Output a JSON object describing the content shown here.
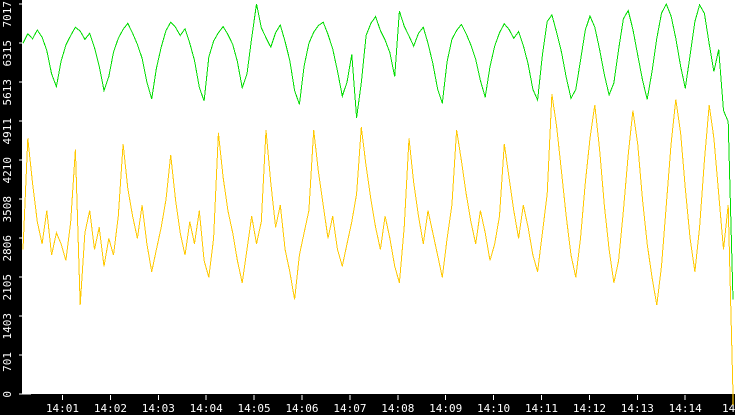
{
  "colors": {
    "plot_background": "#ffffff",
    "axis_background": "#000000",
    "axis_text": "#ffffff",
    "tick": "#ffffff",
    "series_green": "#00DC00",
    "series_yellow": "#FFC800"
  },
  "chart_data": {
    "type": "line",
    "title": "",
    "legend": null,
    "grid": false,
    "x_axis": {
      "tick_labels": [
        "14:01",
        "14:02",
        "14:03",
        "14:04",
        "14:05",
        "14:06",
        "14:07",
        "14:08",
        "14:09",
        "14:10",
        "14:11",
        "14:12",
        "14:13",
        "14:14"
      ],
      "partial_last_label": "14"
    },
    "y_axis": {
      "tick_labels": [
        "0",
        "701",
        "1403",
        "2105",
        "2806",
        "3508",
        "4210",
        "4911",
        "5613",
        "6315",
        "7017"
      ],
      "min": 0,
      "max": 7017
    },
    "series": [
      {
        "name": "green-series",
        "color": "#00DC00",
        "values": [
          6310,
          6480,
          6390,
          6550,
          6420,
          6180,
          5760,
          5530,
          5990,
          6280,
          6450,
          6600,
          6530,
          6380,
          6490,
          6230,
          5900,
          5460,
          5710,
          6150,
          6400,
          6560,
          6670,
          6490,
          6290,
          6040,
          5610,
          5310,
          5860,
          6240,
          6540,
          6690,
          6600,
          6450,
          6570,
          6310,
          6000,
          5520,
          5270,
          6060,
          6350,
          6500,
          6610,
          6470,
          6290,
          5980,
          5510,
          5760,
          6410,
          7017,
          6590,
          6410,
          6240,
          6500,
          6640,
          6340,
          6000,
          5460,
          5210,
          5900,
          6310,
          6510,
          6630,
          6690,
          6470,
          6210,
          5810,
          5360,
          5610,
          6110,
          4970,
          5600,
          6450,
          6670,
          6790,
          6540,
          6370,
          6140,
          5710,
          6890,
          6620,
          6440,
          6260,
          6490,
          6600,
          6310,
          5950,
          5490,
          5230,
          5980,
          6380,
          6540,
          6650,
          6480,
          6280,
          6020,
          5640,
          5340,
          5890,
          6260,
          6500,
          6660,
          6560,
          6400,
          6520,
          6270,
          5940,
          5480,
          5290,
          6100,
          6700,
          6820,
          6500,
          6150,
          5700,
          5320,
          5480,
          6000,
          6550,
          6800,
          6600,
          6200,
          5750,
          5380,
          5600,
          6200,
          6750,
          6900,
          6560,
          6100,
          5650,
          5300,
          5800,
          6400,
          6850,
          7017,
          6800,
          6400,
          5900,
          5500,
          6100,
          6700,
          7000,
          6850,
          6300,
          5800,
          6200,
          5100,
          4900,
          1700
        ]
      },
      {
        "name": "yellow-series",
        "color": "#FFC800",
        "values": [
          2600,
          4600,
          3800,
          3100,
          2700,
          3300,
          2500,
          2900,
          2700,
          2400,
          3100,
          4400,
          1600,
          2900,
          3300,
          2600,
          3000,
          2300,
          2800,
          2500,
          3200,
          4500,
          3700,
          3200,
          2800,
          3400,
          2700,
          2200,
          2600,
          3000,
          3500,
          4300,
          3500,
          2900,
          2500,
          3100,
          2700,
          3300,
          2400,
          2100,
          2800,
          4700,
          3900,
          3300,
          2900,
          2400,
          2000,
          2600,
          3200,
          2700,
          3100,
          4750,
          3800,
          3000,
          3400,
          2600,
          2200,
          1700,
          2500,
          2900,
          3300,
          4750,
          4000,
          3400,
          2800,
          3200,
          2600,
          2300,
          2700,
          3100,
          3600,
          4800,
          4100,
          3500,
          3000,
          2600,
          3200,
          2800,
          2300,
          2000,
          3000,
          4600,
          3800,
          3200,
          2700,
          3300,
          2900,
          2500,
          2100,
          2800,
          3400,
          4750,
          4200,
          3600,
          3100,
          2700,
          3300,
          2900,
          2400,
          2700,
          3200,
          4500,
          3900,
          3300,
          2800,
          3400,
          3000,
          2500,
          2200,
          2900,
          3600,
          5400,
          4800,
          4000,
          3200,
          2500,
          2100,
          2800,
          3800,
          4600,
          5200,
          4400,
          3400,
          2600,
          2000,
          2400,
          3300,
          4300,
          5100,
          4500,
          3500,
          2700,
          2100,
          1600,
          2300,
          3400,
          4500,
          5300,
          4700,
          3700,
          2800,
          2200,
          3000,
          4200,
          5200,
          4600,
          3600,
          2600,
          3400,
          0
        ]
      }
    ]
  }
}
